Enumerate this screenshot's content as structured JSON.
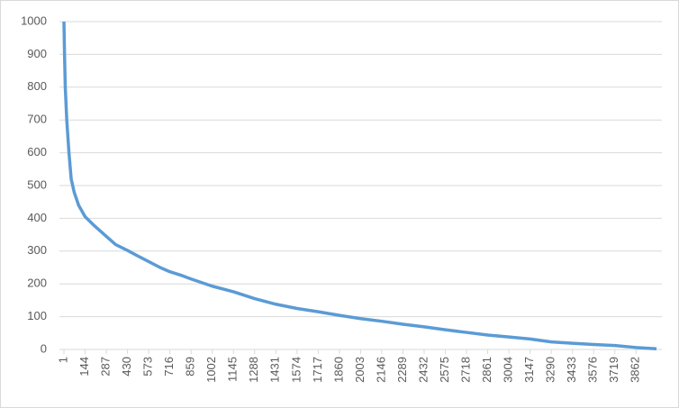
{
  "chart_data": {
    "type": "line",
    "x": [
      1,
      5,
      10,
      20,
      35,
      50,
      70,
      100,
      144,
      200,
      287,
      350,
      430,
      500,
      573,
      650,
      716,
      800,
      859,
      1002,
      1145,
      1288,
      1431,
      1574,
      1717,
      1860,
      2003,
      2146,
      2289,
      2432,
      2575,
      2718,
      2861,
      3004,
      3147,
      3290,
      3433,
      3576,
      3719,
      3862,
      4000
    ],
    "values": [
      1000,
      900,
      800,
      700,
      600,
      520,
      480,
      440,
      405,
      380,
      345,
      320,
      302,
      285,
      268,
      250,
      237,
      225,
      215,
      193,
      176,
      155,
      138,
      125,
      115,
      104,
      94,
      86,
      77,
      69,
      60,
      52,
      44,
      38,
      32,
      23,
      19,
      15,
      12,
      6,
      2
    ],
    "color": "#5b9bd5",
    "xlim": [
      1,
      4000
    ],
    "xticks": [
      1,
      144,
      287,
      430,
      573,
      716,
      859,
      1002,
      1145,
      1288,
      1431,
      1574,
      1717,
      1860,
      2003,
      2146,
      2289,
      2432,
      2575,
      2718,
      2861,
      3004,
      3147,
      3290,
      3433,
      3576,
      3719,
      3862
    ],
    "ylim": [
      0,
      1000
    ],
    "yticks": [
      0,
      100,
      200,
      300,
      400,
      500,
      600,
      700,
      800,
      900,
      1000
    ],
    "grid": true
  }
}
